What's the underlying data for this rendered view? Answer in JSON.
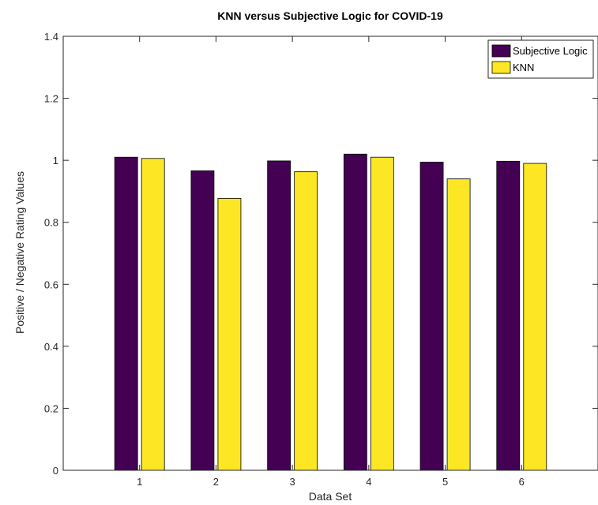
{
  "chart_data": {
    "type": "bar",
    "title": "KNN versus Subjective Logic for COVID-19",
    "xlabel": "Data Set",
    "ylabel": "Positive / Negative Rating Values",
    "categories": [
      "1",
      "2",
      "3",
      "4",
      "5",
      "6"
    ],
    "series": [
      {
        "name": "Subjective Logic",
        "color": "#440154",
        "values": [
          1.01,
          0.966,
          0.998,
          1.02,
          0.994,
          0.997
        ]
      },
      {
        "name": "KNN",
        "color": "#fde725",
        "values": [
          1.006,
          0.877,
          0.963,
          1.01,
          0.94,
          0.99
        ]
      }
    ],
    "ylim": [
      0,
      1.4
    ],
    "yticks": [
      "0",
      "0.2",
      "0.4",
      "0.6",
      "0.8",
      "1",
      "1.2",
      "1.4"
    ],
    "grid": false,
    "legend_position": "top-right"
  }
}
